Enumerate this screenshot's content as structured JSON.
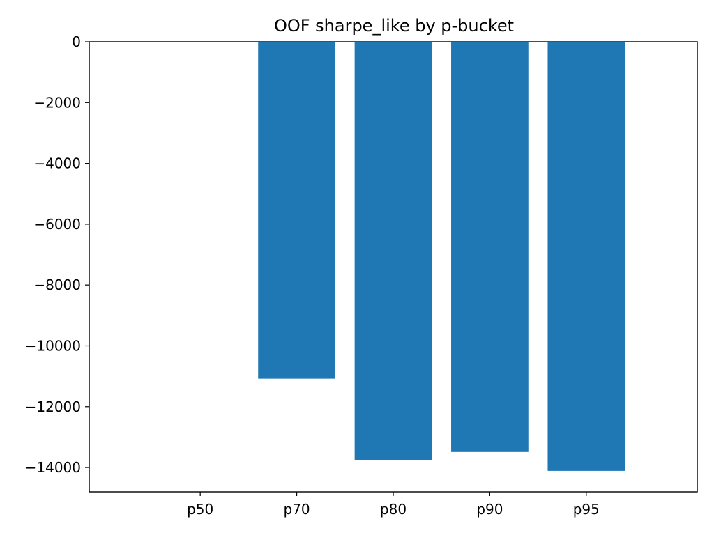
{
  "chart_data": {
    "type": "bar",
    "title": "OOF sharpe_like by p-bucket",
    "xlabel": "",
    "ylabel": "",
    "categories": [
      "p50",
      "p70",
      "p80",
      "p90",
      "p95"
    ],
    "values": [
      0,
      -11080,
      -13750,
      -13490,
      -14110
    ],
    "ylim": [
      -14800,
      0
    ],
    "yticks": [
      0,
      -2000,
      -4000,
      -6000,
      -8000,
      -10000,
      -12000,
      -14000
    ],
    "ytick_labels": [
      "0",
      "−2000",
      "−4000",
      "−6000",
      "−8000",
      "−10000",
      "−12000",
      "−14000"
    ],
    "grid": false,
    "legend": "none",
    "bar_color": "#1f77b4"
  }
}
